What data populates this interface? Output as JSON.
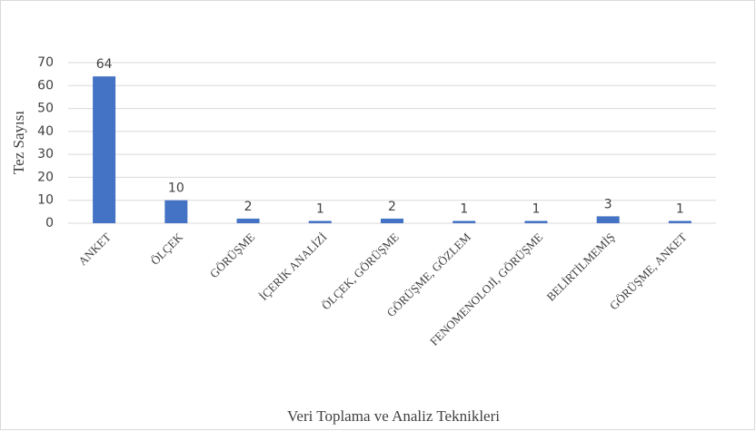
{
  "chart_data": {
    "type": "bar",
    "categories": [
      "ANKET",
      "ÖLÇEK",
      "GÖRÜŞME",
      "İÇERİK ANALİZİ",
      "ÖLÇEK, GÖRÜŞME",
      "GÖRÜŞME, GÖZLEM",
      "FENOMENOLOJİ, GÖRÜŞME",
      "BELİRTİLMEMİŞ",
      "GÖRÜŞME, ANKET"
    ],
    "values": [
      64,
      10,
      2,
      1,
      2,
      1,
      1,
      3,
      1
    ],
    "color": "#4472c4",
    "ylabel": "Tez Sayısı",
    "xlabel": "Veri Toplama ve Analiz Teknikleri",
    "ylim": [
      0,
      70
    ],
    "yticks": [
      0,
      10,
      20,
      30,
      40,
      50,
      60,
      70
    ],
    "grid": true,
    "data_labels": true
  }
}
